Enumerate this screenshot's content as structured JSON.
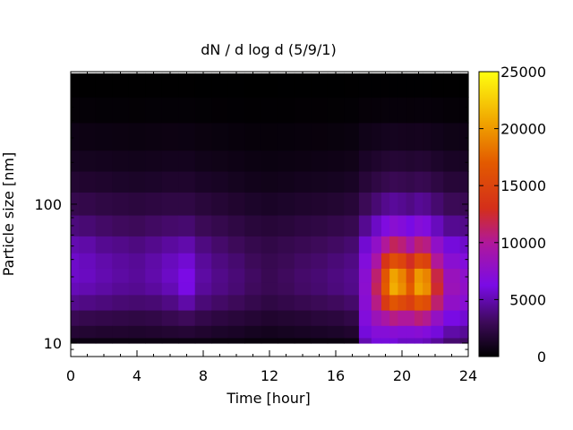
{
  "chart_data": {
    "type": "heatmap",
    "title": "dN / d log d (5/9/1)",
    "xlabel": "Time [hour]",
    "ylabel": "Particle size [nm]",
    "xlim": [
      0,
      24
    ],
    "ylim": [
      8,
      900
    ],
    "y_scale": "log",
    "x_ticks": [
      0,
      4,
      8,
      12,
      16,
      20,
      24
    ],
    "y_ticks": [
      10,
      100
    ],
    "colorbar": {
      "min": 0,
      "max": 25000,
      "ticks": [
        0,
        5000,
        10000,
        15000,
        20000,
        25000
      ],
      "palette": "black-purple-red-yellow"
    },
    "time_hours": [
      0,
      1,
      2,
      3,
      4,
      5,
      6,
      7,
      8,
      9,
      10,
      11,
      12,
      13,
      14,
      15,
      16,
      17,
      17.8,
      18.5,
      19,
      19.5,
      20,
      20.5,
      21,
      21.5,
      22,
      23,
      24
    ],
    "diameter_nm": [
      10,
      12,
      15,
      20,
      25,
      30,
      40,
      50,
      70,
      100,
      150,
      200,
      300,
      500,
      700
    ],
    "dN_dlogd": [
      [
        600,
        1800,
        2800,
        4200,
        5200,
        5600,
        5600,
        5000,
        3800,
        2600,
        1700,
        1100,
        700,
        250,
        40
      ],
      [
        600,
        1700,
        2600,
        4000,
        5000,
        5400,
        5300,
        4800,
        3600,
        2500,
        1600,
        1050,
        650,
        230,
        30
      ],
      [
        600,
        1600,
        2500,
        3800,
        4700,
        5000,
        4900,
        4300,
        3300,
        2300,
        1500,
        1000,
        600,
        200,
        30
      ],
      [
        600,
        1600,
        2400,
        3600,
        4400,
        4700,
        4600,
        4100,
        3100,
        2200,
        1400,
        950,
        580,
        190,
        30
      ],
      [
        600,
        1500,
        2300,
        3500,
        4300,
        4500,
        4400,
        3900,
        3000,
        2100,
        1350,
        900,
        550,
        180,
        30
      ],
      [
        600,
        1600,
        2400,
        3600,
        4600,
        4900,
        4800,
        4200,
        3200,
        2200,
        1400,
        950,
        580,
        190,
        30
      ],
      [
        600,
        1700,
        2700,
        4000,
        5100,
        5500,
        5300,
        4600,
        3400,
        2300,
        1500,
        1000,
        620,
        210,
        30
      ],
      [
        600,
        1800,
        3000,
        4800,
        6200,
        6300,
        5800,
        4900,
        3500,
        2300,
        1500,
        1000,
        600,
        200,
        30
      ],
      [
        600,
        1600,
        2500,
        3700,
        4500,
        4700,
        4500,
        3900,
        2900,
        2000,
        1300,
        850,
        520,
        160,
        20
      ],
      [
        500,
        1400,
        2200,
        3300,
        4000,
        4100,
        3900,
        3400,
        2600,
        1800,
        1200,
        780,
        460,
        140,
        20
      ],
      [
        500,
        1300,
        2000,
        3000,
        3600,
        3700,
        3500,
        3000,
        2300,
        1600,
        1050,
        700,
        400,
        120,
        20
      ],
      [
        400,
        1100,
        1800,
        2600,
        3100,
        3200,
        3000,
        2600,
        2000,
        1400,
        900,
        600,
        350,
        100,
        10
      ],
      [
        400,
        1000,
        1600,
        2300,
        2800,
        2800,
        2700,
        2400,
        1900,
        1300,
        850,
        560,
        330,
        90,
        10
      ],
      [
        400,
        1100,
        1700,
        2500,
        3000,
        3100,
        2900,
        2600,
        2000,
        1400,
        900,
        600,
        360,
        110,
        20
      ],
      [
        400,
        1200,
        1800,
        2700,
        3300,
        3400,
        3200,
        2800,
        2200,
        1500,
        1000,
        650,
        400,
        130,
        20
      ],
      [
        500,
        1300,
        2000,
        2900,
        3500,
        3600,
        3400,
        3000,
        2300,
        1600,
        1050,
        700,
        420,
        140,
        20
      ],
      [
        500,
        1400,
        2100,
        3100,
        3800,
        3900,
        3700,
        3200,
        2500,
        1700,
        1100,
        740,
        450,
        150,
        20
      ],
      [
        600,
        1600,
        2400,
        3400,
        4100,
        4200,
        4000,
        3500,
        2700,
        1900,
        1250,
        820,
        500,
        170,
        30
      ],
      [
        5000,
        6000,
        6800,
        7200,
        7400,
        7300,
        6800,
        5800,
        4300,
        2900,
        1900,
        1300,
        800,
        280,
        60
      ],
      [
        6000,
        7000,
        8500,
        10500,
        11500,
        11000,
        9500,
        7800,
        5500,
        3600,
        2300,
        1500,
        900,
        300,
        60
      ],
      [
        6000,
        7000,
        9500,
        14000,
        17000,
        16500,
        13500,
        10000,
        6600,
        4200,
        2600,
        1700,
        1000,
        330,
        60
      ],
      [
        6000,
        7200,
        10500,
        16500,
        21000,
        20500,
        16000,
        11500,
        7300,
        4500,
        2800,
        1800,
        1050,
        350,
        70
      ],
      [
        5500,
        7000,
        10000,
        15500,
        19500,
        19000,
        15000,
        10800,
        6900,
        4300,
        2700,
        1750,
        1020,
        340,
        70
      ],
      [
        5500,
        7000,
        10000,
        14500,
        17000,
        16000,
        12800,
        9400,
        6200,
        4000,
        2550,
        1650,
        980,
        320,
        60
      ],
      [
        5500,
        7200,
        10800,
        16500,
        20500,
        20000,
        15500,
        11000,
        7000,
        4400,
        2750,
        1750,
        1020,
        340,
        60
      ],
      [
        5200,
        6800,
        10200,
        15800,
        19500,
        19000,
        14800,
        10500,
        6700,
        4200,
        2650,
        1700,
        990,
        330,
        60
      ],
      [
        4500,
        6000,
        8000,
        11000,
        12500,
        12000,
        10000,
        7800,
        5300,
        3500,
        2250,
        1450,
        860,
        290,
        50
      ],
      [
        3500,
        4800,
        6200,
        7800,
        8500,
        8300,
        7300,
        6000,
        4300,
        2900,
        1900,
        1250,
        750,
        250,
        50
      ],
      [
        3200,
        4400,
        5800,
        7200,
        7800,
        7600,
        6800,
        5600,
        4100,
        2800,
        1850,
        1200,
        720,
        240,
        50
      ]
    ]
  }
}
